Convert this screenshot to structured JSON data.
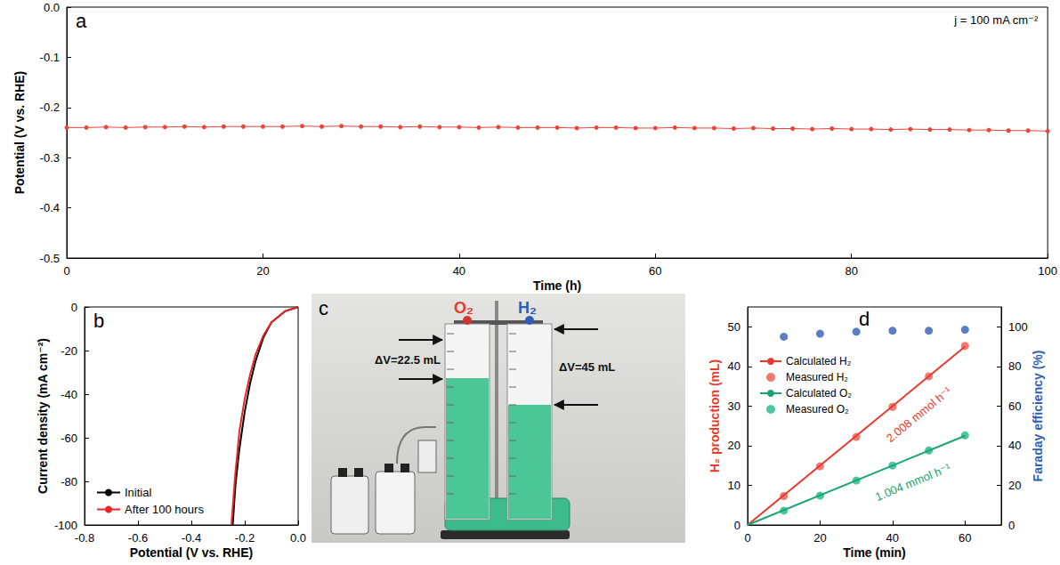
{
  "chart_data": [
    {
      "type": "line",
      "title": "a",
      "annotations": [
        "j = 100 mA cm⁻²"
      ],
      "x_label": "Time (h)",
      "y_label": "Potential (V vs. RHE)",
      "x": [
        0,
        2,
        4,
        6,
        8,
        10,
        12,
        14,
        16,
        18,
        20,
        22,
        24,
        26,
        28,
        30,
        32,
        34,
        36,
        38,
        40,
        42,
        44,
        46,
        48,
        50,
        52,
        54,
        56,
        58,
        60,
        62,
        64,
        66,
        68,
        70,
        72,
        74,
        76,
        78,
        80,
        82,
        84,
        86,
        88,
        90,
        92,
        94,
        96,
        98,
        100
      ],
      "values": [
        -0.24,
        -0.24,
        -0.239,
        -0.24,
        -0.239,
        -0.239,
        -0.238,
        -0.239,
        -0.238,
        -0.238,
        -0.238,
        -0.238,
        -0.237,
        -0.238,
        -0.237,
        -0.238,
        -0.238,
        -0.239,
        -0.238,
        -0.239,
        -0.239,
        -0.24,
        -0.239,
        -0.24,
        -0.24,
        -0.24,
        -0.241,
        -0.24,
        -0.24,
        -0.241,
        -0.241,
        -0.24,
        -0.241,
        -0.241,
        -0.242,
        -0.241,
        -0.242,
        -0.242,
        -0.243,
        -0.242,
        -0.243,
        -0.243,
        -0.244,
        -0.243,
        -0.244,
        -0.244,
        -0.245,
        -0.245,
        -0.246,
        -0.246,
        -0.247
      ],
      "color": "#e8453c",
      "marker": "circle",
      "line_style": "solid",
      "xlim": [
        0,
        100
      ],
      "xticks": [
        0,
        20,
        40,
        60,
        80,
        100
      ],
      "ylim": [
        -0.5,
        0
      ],
      "yticks": [
        -0.5,
        -0.4,
        -0.3,
        -0.2,
        -0.1,
        {
          "value": 0,
          "label": "0.0"
        }
      ],
      "grid": false
    },
    {
      "type": "line",
      "title": "b",
      "x_label": "Potential (V vs. RHE)",
      "y_label": "Current density (mA cm⁻²)",
      "series": [
        {
          "name": "Initial",
          "color": "#000000",
          "line_style": "solid",
          "x": [
            0,
            -0.05,
            -0.1,
            -0.13,
            -0.16,
            -0.18,
            -0.2,
            -0.22,
            -0.235,
            -0.245
          ],
          "values": [
            0,
            -2,
            -7,
            -14,
            -25,
            -35,
            -48,
            -65,
            -82,
            -100
          ]
        },
        {
          "name": "After 100 hours",
          "color": "#e8262a",
          "line_style": "solid",
          "x": [
            0,
            -0.05,
            -0.1,
            -0.13,
            -0.16,
            -0.18,
            -0.2,
            -0.22,
            -0.235,
            -0.245,
            -0.25
          ],
          "values": [
            0,
            -2,
            -7,
            -13,
            -22,
            -31,
            -42,
            -57,
            -76,
            -92,
            -100
          ]
        }
      ],
      "xlim": [
        -0.8,
        0
      ],
      "xticks": [
        -0.8,
        -0.6,
        -0.4,
        -0.2,
        {
          "value": 0,
          "label": "0.0"
        }
      ],
      "ylim": [
        -100,
        0
      ],
      "yticks": [
        -100,
        -80,
        -60,
        -40,
        -20,
        0
      ],
      "legend": "lower left",
      "grid": false
    },
    {
      "type": "line",
      "title": "d",
      "x_label": "Time (min)",
      "y_label": "H₂ production (mL)",
      "y2_label": "Faraday efficiency (%)",
      "series": [
        {
          "name": "Calculated H₂",
          "type": "line",
          "color": "#e8392f",
          "line_style": "solid",
          "annotation": "2.008 mmol h⁻¹",
          "x": [
            0,
            60
          ],
          "values": [
            0,
            45
          ]
        },
        {
          "name": "Measured H₂",
          "type": "scatter",
          "color": "#f0564e",
          "marker": "circle",
          "x": [
            10,
            20,
            30,
            40,
            50,
            60
          ],
          "values": [
            7.3,
            14.8,
            22.2,
            29.8,
            37.5,
            45.2
          ]
        },
        {
          "name": "Calculated O₂",
          "type": "line",
          "color": "#17a673",
          "line_style": "solid",
          "annotation": "1.004 mmol h⁻¹",
          "x": [
            0,
            60
          ],
          "values": [
            0,
            22.5
          ]
        },
        {
          "name": "Measured O₂",
          "type": "scatter",
          "color": "#22b58a",
          "marker": "circle",
          "x": [
            10,
            20,
            30,
            40,
            50,
            60
          ],
          "values": [
            3.6,
            7.4,
            11.2,
            15.0,
            18.8,
            22.6
          ]
        },
        {
          "type": "scatter",
          "color": "#2f5fb3",
          "marker": "circle",
          "axis": "y2",
          "x": [
            10,
            20,
            30,
            40,
            50,
            60
          ],
          "values": [
            95,
            96.5,
            97.5,
            98,
            98,
            98.5
          ]
        }
      ],
      "xlim": [
        0,
        70
      ],
      "xticks": [
        0,
        20,
        40,
        60
      ],
      "ylim": [
        0,
        55
      ],
      "yticks": [
        0,
        10,
        20,
        30,
        40,
        50
      ],
      "y2lim": [
        0,
        110
      ],
      "y2ticks": [
        0,
        20,
        40,
        60,
        80,
        100
      ],
      "legend": "upper left",
      "grid": false
    }
  ],
  "photo": {
    "title": "c",
    "left_gas": "O₂",
    "right_gas": "H₂",
    "left_volume": "ΔV=22.5 mL",
    "right_volume": "ΔV=45 mL"
  }
}
